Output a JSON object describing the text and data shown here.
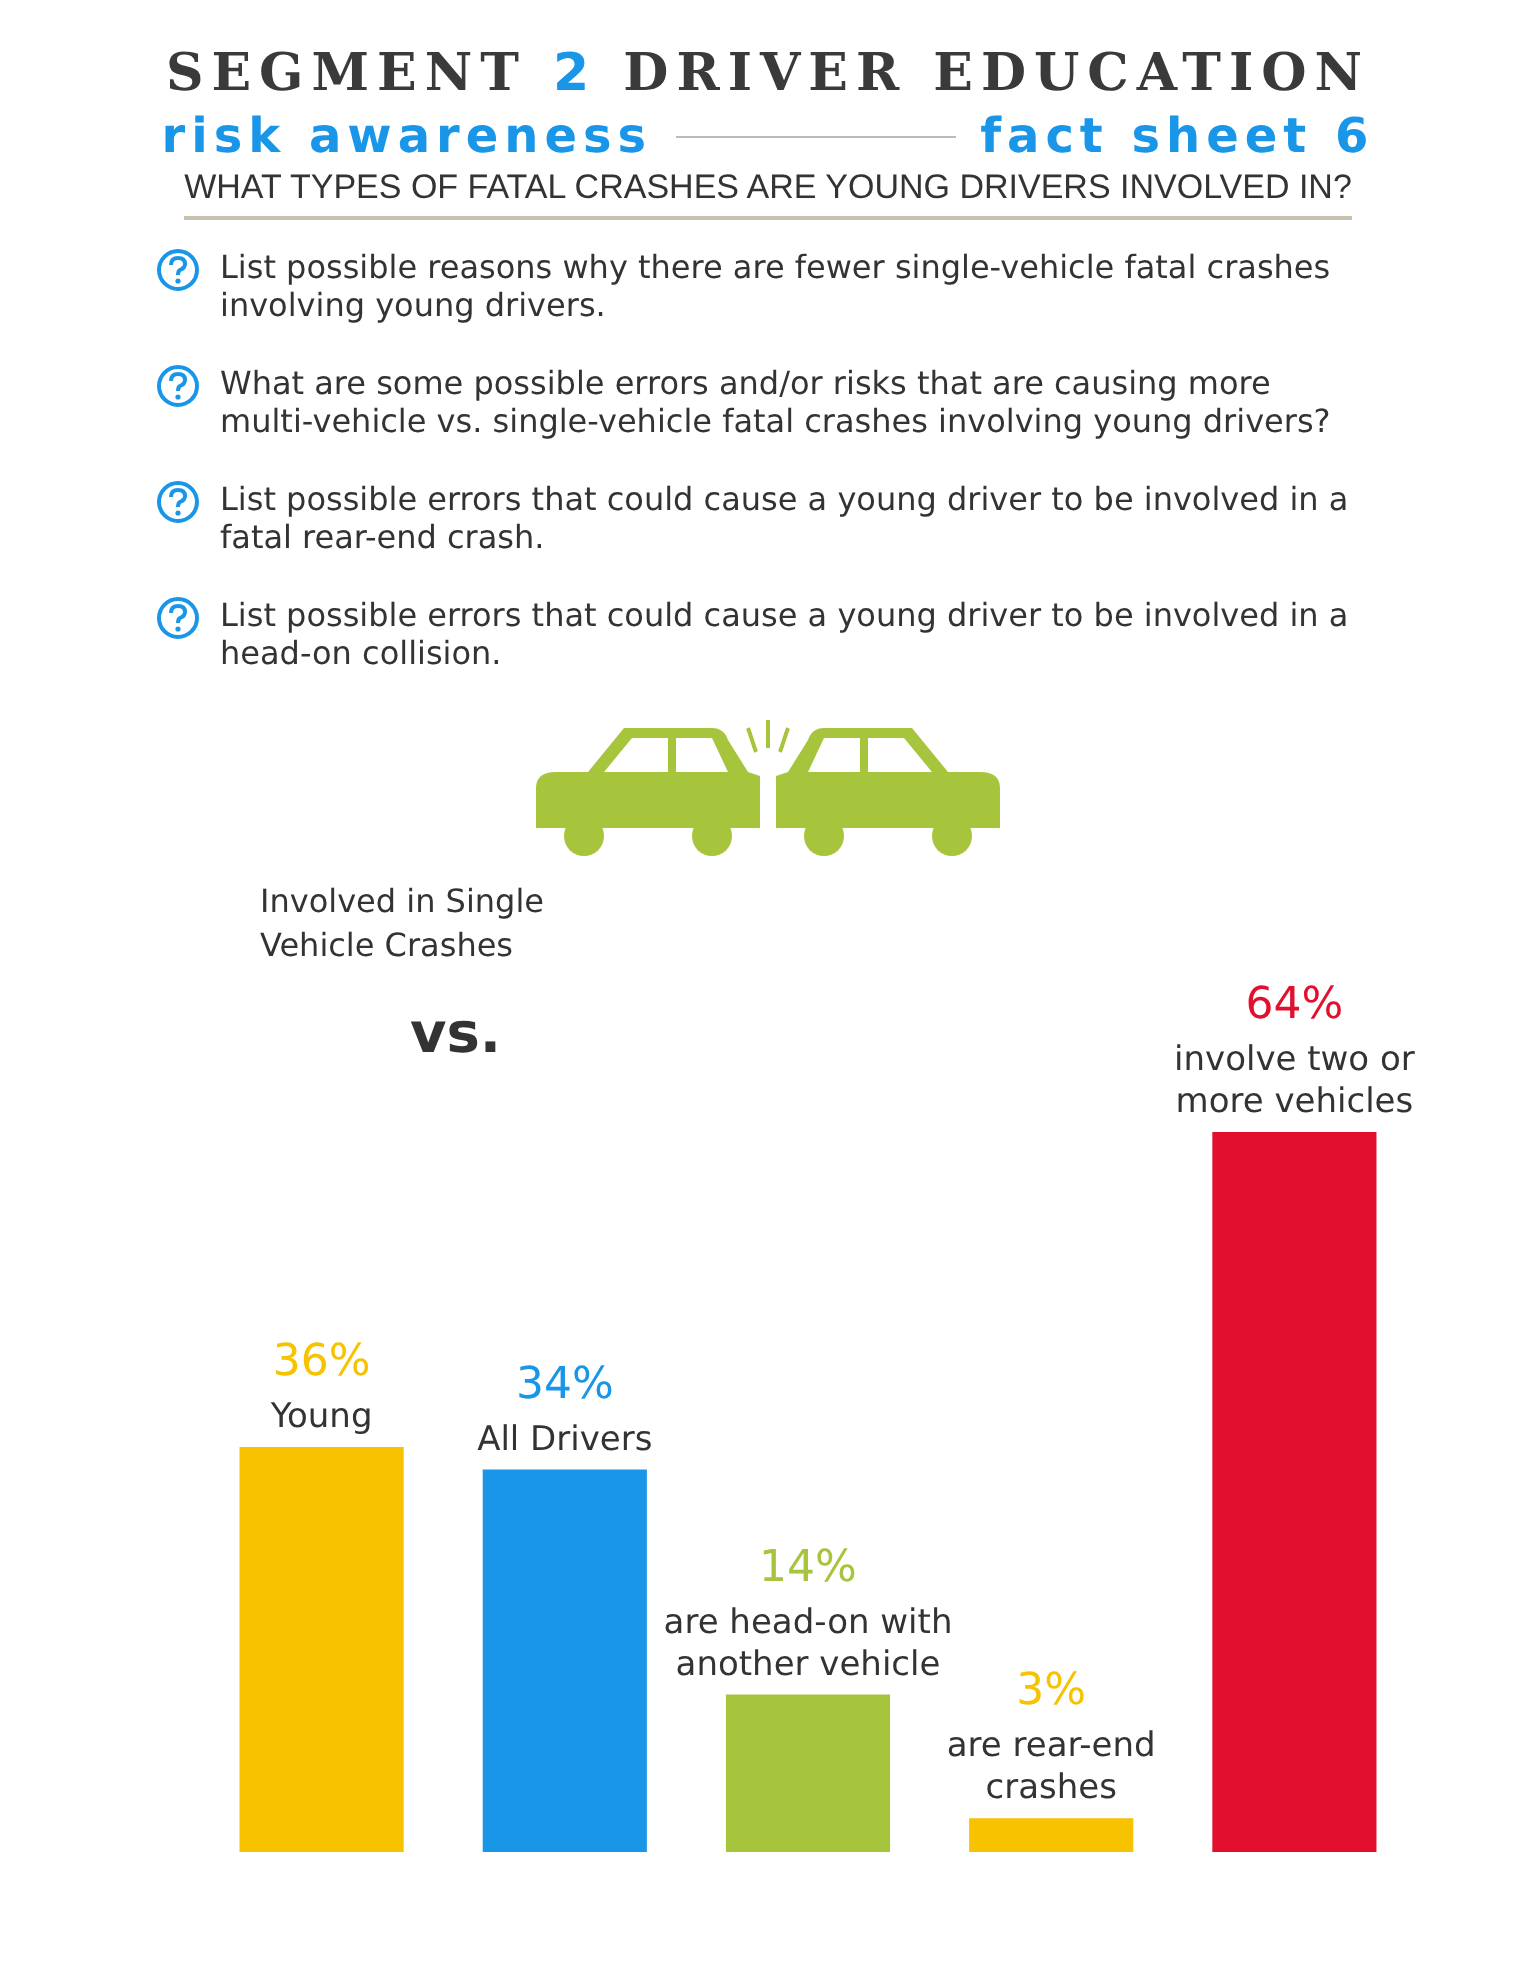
{
  "chart_data": {
    "type": "bar",
    "title": "SEGMENT 2 DRIVER EDUCATION",
    "subtitle": "risk awareness",
    "annotations": [
      "fact sheet 6",
      "WHAT TYPES OF FATAL CRASHES ARE YOUNG DRIVERS INVOLVED IN?",
      "List possible reasons why there are fewer single-vehicle fatal crashes involving young drivers.",
      "What are some possible errors and/or risks that are causing more multi-vehicle vs. single-vehicle fatal crashes involving young drivers?",
      "List possible errors that could cause a young driver to be involved in a fatal rear-end crash.",
      "List possible errors that could cause a young driver to be involved in a head-on collision.",
      "Involved in Single Vehicle Crashes",
      "vs."
    ],
    "categories": [
      "Young",
      "All Drivers",
      "are head-on with another vehicle",
      "are rear-end crashes",
      "involve two or more vehicles"
    ],
    "values": [
      36,
      34,
      14,
      3,
      64
    ],
    "colors": [
      "#f7c200",
      "#1a96e8",
      "#a6c43c",
      "#f7c200",
      "#e2102e"
    ],
    "value_labels": [
      "36%",
      "34%",
      "14%",
      "3%",
      "64%"
    ],
    "tick_labels": false
  }
}
